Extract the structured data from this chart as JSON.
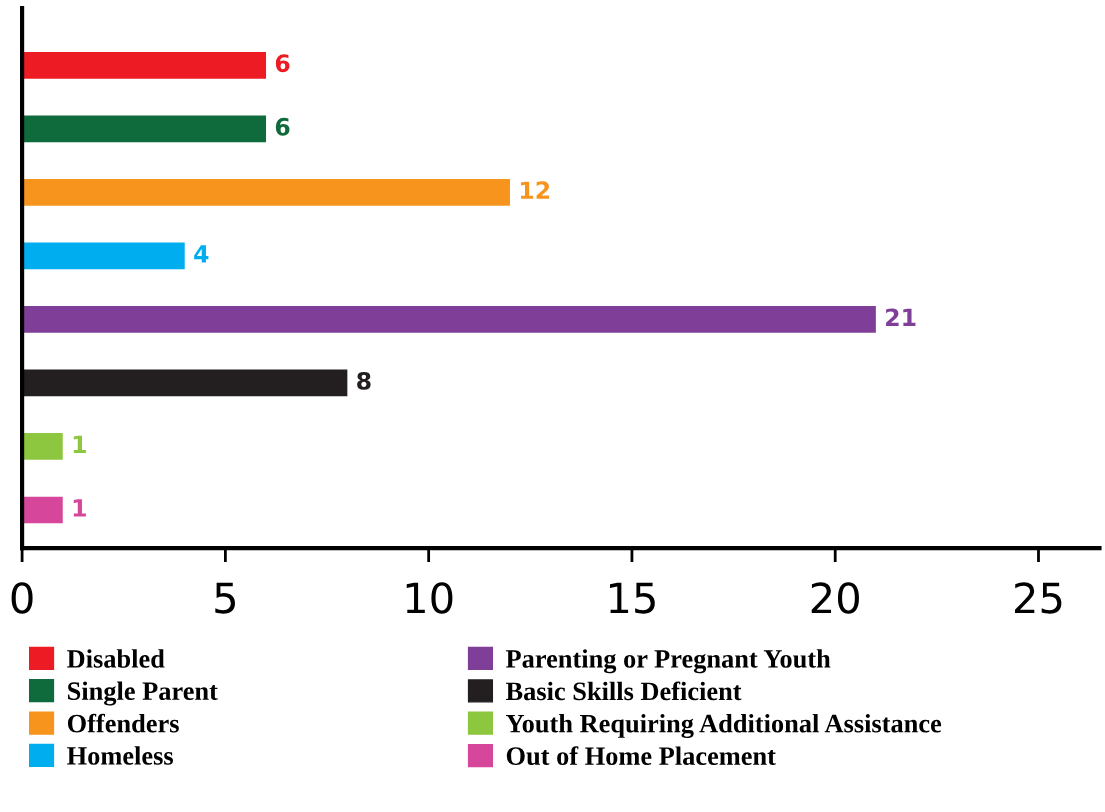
{
  "chart_data": {
    "type": "bar",
    "orientation": "horizontal",
    "categories": [
      null,
      null,
      null,
      null,
      null,
      null,
      null,
      null
    ],
    "series": [
      {
        "name": "Disabled",
        "color": "#ed1c24",
        "values": [
          6,
          null,
          null,
          null,
          null,
          null,
          null,
          null
        ]
      },
      {
        "name": "Single Parent",
        "color": "#0f6b3c",
        "values": [
          null,
          6,
          null,
          null,
          null,
          null,
          null,
          null
        ]
      },
      {
        "name": "Offenders",
        "color": "#f7941d",
        "values": [
          null,
          null,
          12,
          null,
          null,
          null,
          null,
          null
        ]
      },
      {
        "name": "Homeless",
        "color": "#00aeef",
        "values": [
          null,
          null,
          null,
          4,
          null,
          null,
          null,
          null
        ]
      },
      {
        "name": "Parenting or Pregnant Youth",
        "color": "#7f3f98",
        "values": [
          null,
          null,
          null,
          null,
          21,
          null,
          null,
          null
        ]
      },
      {
        "name": "Basic Skills Deficient",
        "color": "#231f20",
        "values": [
          null,
          null,
          null,
          null,
          null,
          8,
          null,
          null
        ]
      },
      {
        "name": "Youth Requiring Additional Assistance",
        "color": "#8dc63f",
        "values": [
          null,
          null,
          null,
          null,
          null,
          null,
          1,
          null
        ]
      },
      {
        "name": "Out of Home Placement",
        "color": "#d6479b",
        "values": [
          null,
          null,
          null,
          null,
          null,
          null,
          null,
          1
        ]
      }
    ],
    "xlim": [
      0,
      26.5
    ],
    "xticks": [
      0,
      5,
      10,
      15,
      20,
      25
    ],
    "data_labels": true,
    "legend": "bottom",
    "grid": false
  }
}
